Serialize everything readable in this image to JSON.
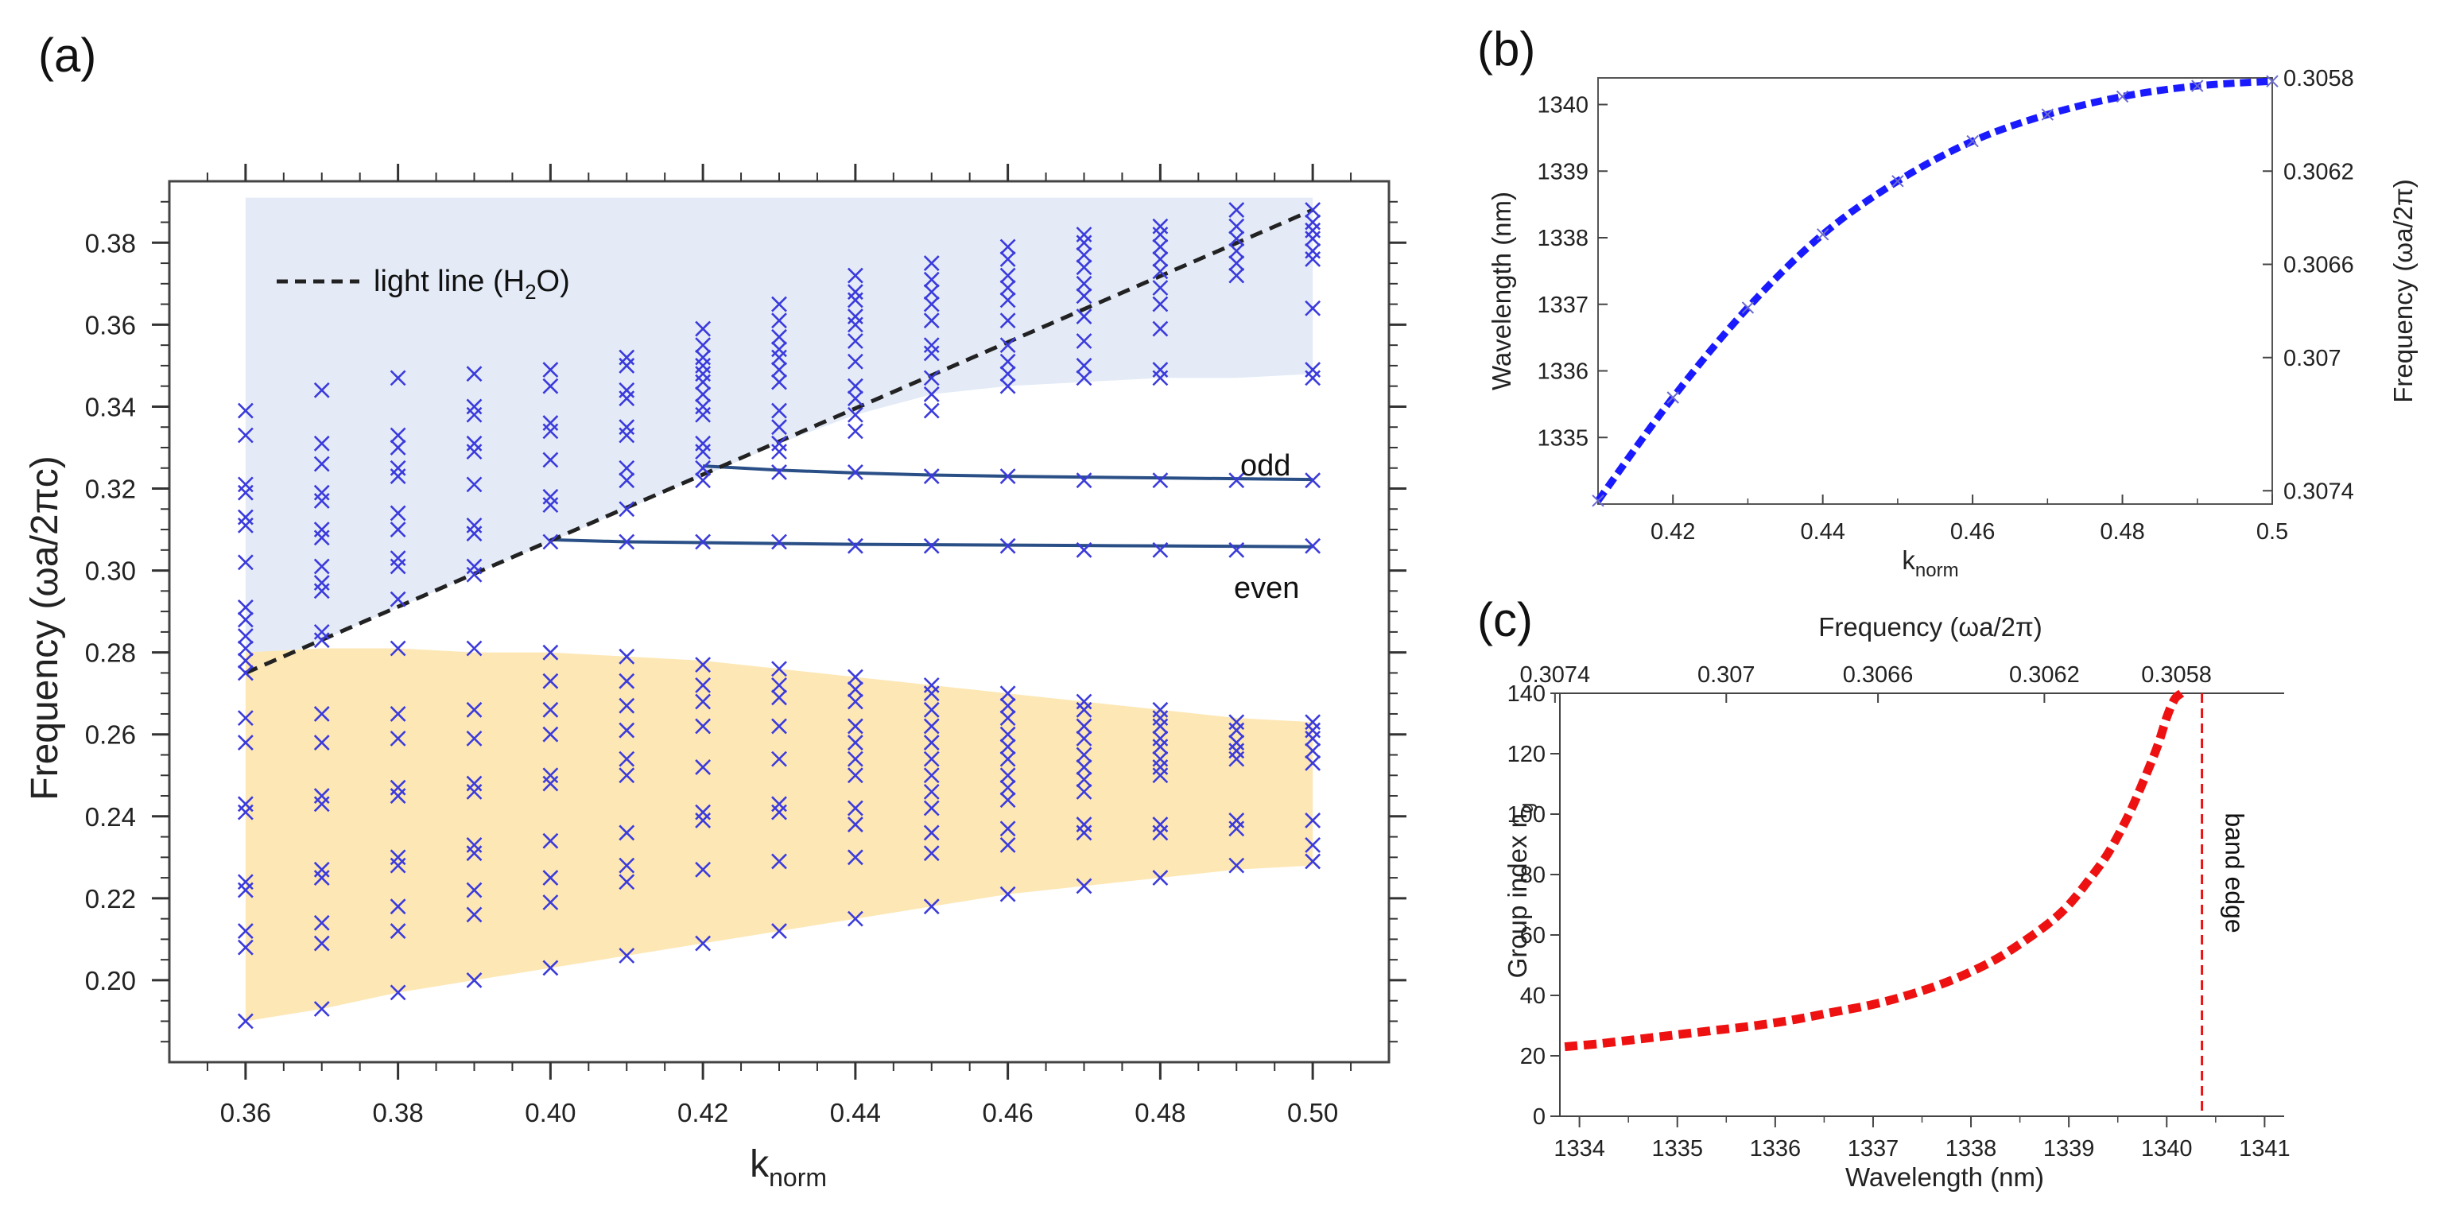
{
  "panels": {
    "a": "(a)",
    "b": "(b)",
    "c": "(c)"
  },
  "colors": {
    "marker": "#3b3bdc",
    "upper_fill": "#e4ebf7",
    "lower_fill": "#fde7b4",
    "mode_line": "#2a4f86",
    "light_line": "#222222",
    "fit_b": "#1a1aff",
    "curve_c": "#ee1111",
    "band_edge": "#ee1111"
  },
  "chart_data": [
    {
      "id": "a",
      "type": "scatter",
      "ylabel": "Frequency (ωa/2πc)",
      "xlabel_main": "k",
      "xlabel_sub": "norm",
      "xlim": [
        0.35,
        0.51
      ],
      "ylim": [
        0.18,
        0.395
      ],
      "xticks": [
        "0.36",
        "0.38",
        "0.40",
        "0.42",
        "0.44",
        "0.46",
        "0.48",
        "0.50"
      ],
      "yticks": [
        "0.20",
        "0.22",
        "0.24",
        "0.26",
        "0.28",
        "0.30",
        "0.32",
        "0.34",
        "0.36",
        "0.38"
      ],
      "legend": {
        "label": "light line (H",
        "sub": "2",
        "suffix": "O)",
        "placement": "top-left"
      },
      "annotations": {
        "odd": "odd",
        "even": "even"
      },
      "light_line": {
        "x": [
          0.36,
          0.5
        ],
        "y": [
          0.275,
          0.388
        ]
      },
      "upper_region": {
        "x": [
          0.36,
          0.37,
          0.38,
          0.39,
          0.4,
          0.41,
          0.42,
          0.43,
          0.44,
          0.45,
          0.46,
          0.47,
          0.48,
          0.49,
          0.5
        ],
        "top": [
          0.391,
          0.391,
          0.391,
          0.391,
          0.391,
          0.391,
          0.391,
          0.391,
          0.391,
          0.391,
          0.391,
          0.391,
          0.391,
          0.391,
          0.391
        ],
        "bottom": [
          0.275,
          0.283,
          0.291,
          0.299,
          0.307,
          0.315,
          0.323,
          0.331,
          0.338,
          0.343,
          0.345,
          0.346,
          0.347,
          0.347,
          0.348
        ]
      },
      "lower_region": {
        "x": [
          0.36,
          0.37,
          0.38,
          0.39,
          0.4,
          0.41,
          0.42,
          0.43,
          0.44,
          0.45,
          0.46,
          0.47,
          0.48,
          0.49,
          0.5
        ],
        "top": [
          0.28,
          0.281,
          0.281,
          0.28,
          0.28,
          0.279,
          0.278,
          0.276,
          0.274,
          0.272,
          0.27,
          0.268,
          0.266,
          0.264,
          0.263
        ],
        "bottom": [
          0.19,
          0.193,
          0.197,
          0.2,
          0.203,
          0.206,
          0.209,
          0.212,
          0.215,
          0.218,
          0.221,
          0.223,
          0.225,
          0.227,
          0.228
        ]
      },
      "odd_mode": {
        "x": [
          0.42,
          0.43,
          0.44,
          0.45,
          0.46,
          0.47,
          0.48,
          0.49,
          0.5
        ],
        "y": [
          0.3255,
          0.3245,
          0.3238,
          0.3233,
          0.323,
          0.3228,
          0.3226,
          0.3224,
          0.3222
        ]
      },
      "even_mode": {
        "x": [
          0.4,
          0.41,
          0.42,
          0.43,
          0.44,
          0.45,
          0.46,
          0.47,
          0.48,
          0.49,
          0.5
        ],
        "y": [
          0.3075,
          0.307,
          0.3068,
          0.3066,
          0.3064,
          0.3063,
          0.3062,
          0.3061,
          0.306,
          0.3059,
          0.3058
        ]
      },
      "markers": [
        {
          "x": 0.36,
          "y": [
            0.19,
            0.208,
            0.212,
            0.222,
            0.224,
            0.241,
            0.243,
            0.258,
            0.264,
            0.275,
            0.278,
            0.281,
            0.284,
            0.288,
            0.291,
            0.302,
            0.311,
            0.313,
            0.319,
            0.321,
            0.333,
            0.339
          ]
        },
        {
          "x": 0.37,
          "y": [
            0.193,
            0.209,
            0.214,
            0.225,
            0.227,
            0.243,
            0.245,
            0.258,
            0.265,
            0.283,
            0.285,
            0.295,
            0.297,
            0.301,
            0.308,
            0.31,
            0.317,
            0.319,
            0.326,
            0.331,
            0.344
          ]
        },
        {
          "x": 0.38,
          "y": [
            0.197,
            0.212,
            0.218,
            0.228,
            0.23,
            0.245,
            0.247,
            0.259,
            0.265,
            0.281,
            0.293,
            0.301,
            0.303,
            0.31,
            0.314,
            0.323,
            0.325,
            0.33,
            0.333,
            0.347
          ]
        },
        {
          "x": 0.39,
          "y": [
            0.2,
            0.216,
            0.222,
            0.231,
            0.233,
            0.246,
            0.248,
            0.259,
            0.266,
            0.281,
            0.299,
            0.301,
            0.309,
            0.311,
            0.321,
            0.329,
            0.331,
            0.338,
            0.34,
            0.348
          ]
        },
        {
          "x": 0.4,
          "y": [
            0.203,
            0.219,
            0.225,
            0.234,
            0.248,
            0.25,
            0.26,
            0.266,
            0.273,
            0.28,
            0.307,
            0.316,
            0.318,
            0.327,
            0.334,
            0.336,
            0.345,
            0.349
          ]
        },
        {
          "x": 0.41,
          "y": [
            0.206,
            0.224,
            0.228,
            0.236,
            0.25,
            0.254,
            0.261,
            0.267,
            0.273,
            0.279,
            0.307,
            0.315,
            0.322,
            0.325,
            0.333,
            0.335,
            0.342,
            0.344,
            0.35,
            0.352
          ]
        },
        {
          "x": 0.42,
          "y": [
            0.209,
            0.227,
            0.239,
            0.241,
            0.252,
            0.262,
            0.268,
            0.272,
            0.277,
            0.307,
            0.322,
            0.325,
            0.329,
            0.331,
            0.338,
            0.34,
            0.343,
            0.346,
            0.348,
            0.35,
            0.352,
            0.355,
            0.359
          ]
        },
        {
          "x": 0.43,
          "y": [
            0.212,
            0.229,
            0.241,
            0.243,
            0.254,
            0.262,
            0.269,
            0.272,
            0.276,
            0.307,
            0.324,
            0.329,
            0.331,
            0.335,
            0.339,
            0.346,
            0.349,
            0.352,
            0.354,
            0.357,
            0.361,
            0.365
          ]
        },
        {
          "x": 0.44,
          "y": [
            0.215,
            0.23,
            0.238,
            0.242,
            0.25,
            0.254,
            0.258,
            0.262,
            0.268,
            0.271,
            0.274,
            0.306,
            0.324,
            0.334,
            0.338,
            0.342,
            0.345,
            0.351,
            0.356,
            0.36,
            0.362,
            0.366,
            0.368,
            0.372
          ]
        },
        {
          "x": 0.45,
          "y": [
            0.218,
            0.231,
            0.236,
            0.242,
            0.246,
            0.25,
            0.254,
            0.258,
            0.262,
            0.266,
            0.27,
            0.272,
            0.306,
            0.323,
            0.339,
            0.343,
            0.347,
            0.353,
            0.355,
            0.361,
            0.365,
            0.368,
            0.371,
            0.375
          ]
        },
        {
          "x": 0.46,
          "y": [
            0.221,
            0.233,
            0.237,
            0.244,
            0.247,
            0.25,
            0.254,
            0.257,
            0.26,
            0.264,
            0.267,
            0.27,
            0.306,
            0.323,
            0.345,
            0.348,
            0.351,
            0.355,
            0.361,
            0.366,
            0.369,
            0.372,
            0.376,
            0.379
          ]
        },
        {
          "x": 0.47,
          "y": [
            0.223,
            0.236,
            0.238,
            0.246,
            0.249,
            0.252,
            0.255,
            0.259,
            0.262,
            0.266,
            0.268,
            0.305,
            0.322,
            0.347,
            0.35,
            0.356,
            0.362,
            0.367,
            0.37,
            0.374,
            0.377,
            0.38,
            0.382
          ]
        },
        {
          "x": 0.48,
          "y": [
            0.225,
            0.236,
            0.238,
            0.25,
            0.252,
            0.254,
            0.257,
            0.259,
            0.262,
            0.264,
            0.266,
            0.305,
            0.322,
            0.347,
            0.349,
            0.359,
            0.365,
            0.369,
            0.373,
            0.376,
            0.379,
            0.382,
            0.384
          ]
        },
        {
          "x": 0.49,
          "y": [
            0.228,
            0.237,
            0.239,
            0.254,
            0.256,
            0.258,
            0.261,
            0.263,
            0.305,
            0.322,
            0.372,
            0.375,
            0.378,
            0.381,
            0.384,
            0.388
          ]
        },
        {
          "x": 0.5,
          "y": [
            0.229,
            0.233,
            0.239,
            0.253,
            0.256,
            0.259,
            0.261,
            0.263,
            0.306,
            0.322,
            0.347,
            0.349,
            0.364,
            0.376,
            0.378,
            0.381,
            0.383,
            0.385,
            0.388
          ]
        }
      ]
    },
    {
      "id": "b",
      "type": "line",
      "xlabel_main": "k",
      "xlabel_sub": "norm",
      "ylabel": "Wavelength (nm)",
      "ylabel_right": "Frequency (ωa/2π)",
      "xlim": [
        0.41,
        0.5
      ],
      "ylim": [
        1334.0,
        1340.4
      ],
      "xticks": [
        "0.42",
        "0.44",
        "0.46",
        "0.48",
        "0.5"
      ],
      "yticks": [
        "1335",
        "1336",
        "1337",
        "1338",
        "1339",
        "1340"
      ],
      "yticks_right": [
        {
          "label": "0.3058",
          "at": 1340.4
        },
        {
          "label": "0.3062",
          "at": 1339.0
        },
        {
          "label": "0.3066",
          "at": 1337.6
        },
        {
          "label": "0.307",
          "at": 1336.2
        },
        {
          "label": "0.3074",
          "at": 1334.2
        }
      ],
      "x": [
        0.41,
        0.42,
        0.43,
        0.44,
        0.45,
        0.46,
        0.47,
        0.48,
        0.49,
        0.5
      ],
      "y": [
        1334.05,
        1335.6,
        1336.95,
        1338.05,
        1338.85,
        1339.45,
        1339.85,
        1340.12,
        1340.28,
        1340.35
      ]
    },
    {
      "id": "c",
      "type": "line",
      "xlabel": "Wavelength (nm)",
      "ylabel": "Group index n",
      "ylabel_sub": "g",
      "toplabel": "Frequency (ωa/2π)",
      "xlim": [
        1333.8,
        1341.2
      ],
      "ylim": [
        0,
        140
      ],
      "xticks": [
        "1334",
        "1335",
        "1336",
        "1337",
        "1338",
        "1339",
        "1340",
        "1341"
      ],
      "yticks": [
        "0",
        "20",
        "40",
        "60",
        "80",
        "100",
        "120",
        "140"
      ],
      "top_ticks": [
        {
          "label": "0.3074",
          "at": 1333.75
        },
        {
          "label": "0.307",
          "at": 1335.5
        },
        {
          "label": "0.3066",
          "at": 1337.05
        },
        {
          "label": "0.3062",
          "at": 1338.75
        },
        {
          "label": "0.3058",
          "at": 1340.1
        }
      ],
      "band_edge": {
        "x": 1340.36,
        "label": "band edge"
      },
      "x": [
        1333.85,
        1334.2,
        1334.6,
        1335.0,
        1335.4,
        1335.8,
        1336.2,
        1336.6,
        1337.0,
        1337.4,
        1337.8,
        1338.2,
        1338.5,
        1338.8,
        1339.0,
        1339.2,
        1339.4,
        1339.6,
        1339.75,
        1339.9,
        1340.0,
        1340.08,
        1340.15
      ],
      "y": [
        23,
        24,
        25.5,
        27,
        28.5,
        30,
        32,
        34.5,
        37,
        40.5,
        45,
        51,
        57,
        64,
        70,
        78,
        87,
        99,
        110,
        122,
        132,
        138,
        141
      ]
    }
  ]
}
